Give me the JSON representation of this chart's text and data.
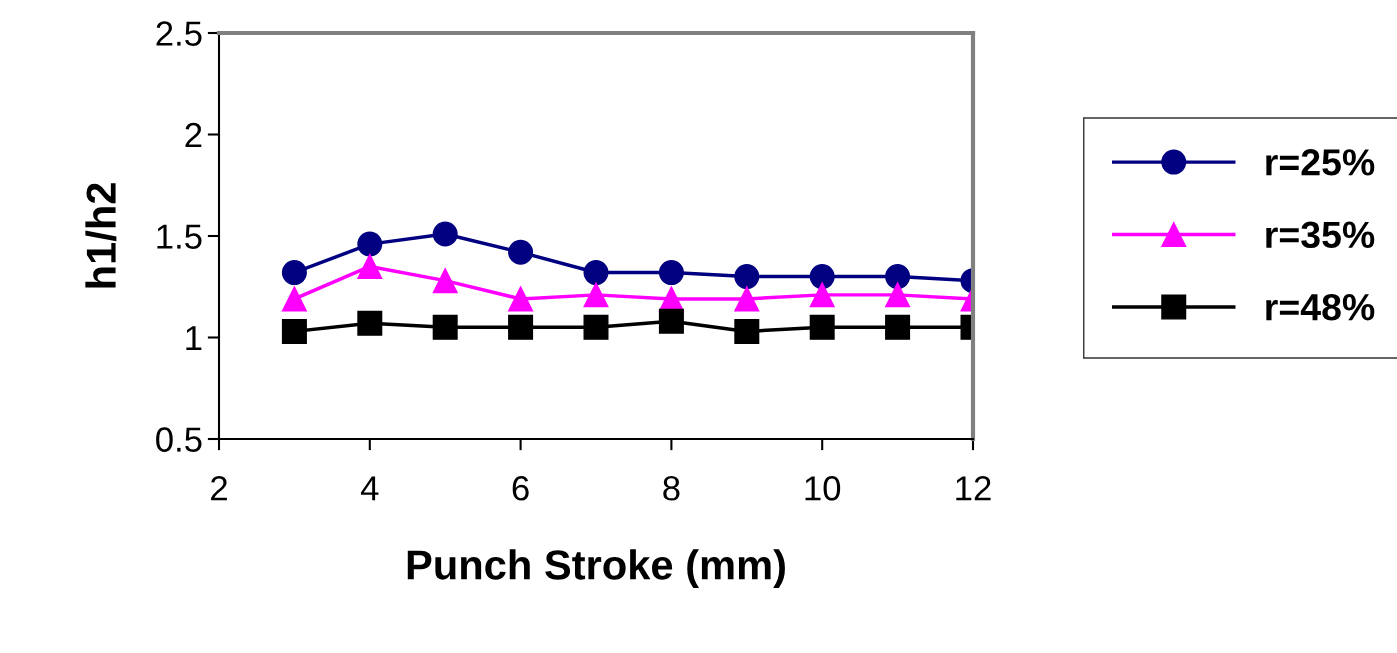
{
  "chart_data": {
    "type": "line",
    "xlabel": "Punch Stroke (mm)",
    "ylabel": "h1/h2",
    "x": [
      3,
      4,
      5,
      6,
      7,
      8,
      9,
      10,
      11,
      12
    ],
    "series": [
      {
        "name": "r=25%",
        "color": "#000080",
        "marker": "circle",
        "values": [
          1.32,
          1.46,
          1.51,
          1.42,
          1.32,
          1.32,
          1.3,
          1.3,
          1.3,
          1.28
        ]
      },
      {
        "name": "r=35%",
        "color": "#ff00ff",
        "marker": "triangle",
        "values": [
          1.19,
          1.35,
          1.28,
          1.19,
          1.21,
          1.19,
          1.19,
          1.21,
          1.21,
          1.19
        ]
      },
      {
        "name": "r=48%",
        "color": "#000000",
        "marker": "square",
        "values": [
          1.03,
          1.07,
          1.05,
          1.05,
          1.05,
          1.08,
          1.03,
          1.05,
          1.05,
          1.05
        ]
      }
    ],
    "xlim": [
      2,
      12
    ],
    "xticks": [
      2,
      4,
      6,
      8,
      10,
      12
    ],
    "ylim": [
      0.5,
      2.5
    ],
    "yticks": [
      0.5,
      1,
      1.5,
      2,
      2.5
    ],
    "grid": false,
    "legend": "right",
    "line_style": "solid"
  }
}
